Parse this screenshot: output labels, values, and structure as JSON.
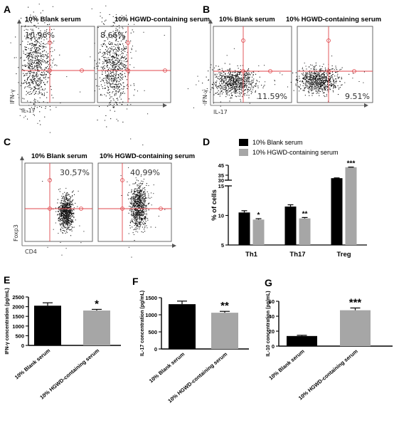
{
  "panel_labels": [
    "A",
    "B",
    "C",
    "D",
    "E",
    "F",
    "G"
  ],
  "flow": {
    "A": {
      "titles": [
        "10% Blank serum",
        "10% HGWD-containing serum"
      ],
      "percents": [
        "10.96%",
        "8.66%"
      ],
      "y_axis": "IFN-γ",
      "x_axis": "IL-17"
    },
    "B": {
      "titles": [
        "10% Blank serum",
        "10% HGWD-containing serum"
      ],
      "percents": [
        "11.59%",
        "9.51%"
      ],
      "y_axis": "IFN-γ",
      "x_axis": "IL-17"
    },
    "C": {
      "titles": [
        "10% Blank serum",
        "10% HGWD-containing serum"
      ],
      "percents": [
        "30.57%",
        "40.99%"
      ],
      "y_axis": "Foxp3",
      "x_axis": "CD4"
    }
  },
  "colors": {
    "blank": "#000000",
    "hgwd": "#a6a6a6",
    "gate": "#e0474c",
    "dots": "#111111"
  },
  "chart_data": [
    {
      "panel": "D",
      "type": "bar",
      "categories": [
        "Th1",
        "Th17",
        "Treg"
      ],
      "series": [
        {
          "name": "10% Blank serum",
          "values": [
            10.5,
            11.5,
            32
          ],
          "errors": [
            0.3,
            0.3,
            0.2
          ]
        },
        {
          "name": "10% HGWD-containing serum",
          "values": [
            9.3,
            9.5,
            43
          ],
          "errors": [
            0.2,
            0.15,
            0.3
          ]
        }
      ],
      "significance": [
        "*",
        "**",
        "***"
      ],
      "ylabel": "% of cells",
      "yticks_lower": [
        "5",
        "10",
        "15"
      ],
      "yticks_upper": [
        "30",
        "35",
        "45"
      ],
      "ylim_lower": [
        5,
        15
      ],
      "ylim_upper": [
        30,
        45
      ],
      "axis_break": [
        15,
        30
      ],
      "legend_position": "top"
    },
    {
      "panel": "E",
      "type": "bar",
      "categories": [
        "10% Blank serum",
        "10% HGWD-containing serum"
      ],
      "values": [
        2050,
        1800
      ],
      "errors": [
        150,
        60
      ],
      "significance": "*",
      "ylabel": "IFN-γ concentration (pg/mL)",
      "yticks": [
        "0",
        "500",
        "1000",
        "1500",
        "2000",
        "2500"
      ],
      "ylim": [
        0,
        2500
      ]
    },
    {
      "panel": "F",
      "type": "bar",
      "categories": [
        "10% Blank serum",
        "10% HGWD-containing serum"
      ],
      "values": [
        1310,
        1060
      ],
      "errors": [
        90,
        40
      ],
      "significance": "**",
      "ylabel": "IL-17 concentration (pg/mL)",
      "yticks": [
        "0",
        "500",
        "1000",
        "1500"
      ],
      "ylim": [
        0,
        1500
      ]
    },
    {
      "panel": "G",
      "type": "bar",
      "categories": [
        "10% Blank serum",
        "10% HGWD-containing serum"
      ],
      "values": [
        13.5,
        48
      ],
      "errors": [
        1.0,
        3.0
      ],
      "significance": "***",
      "ylabel": "IL-10 concentration (pg/mL)",
      "yticks": [
        "0",
        "20",
        "40",
        "60"
      ],
      "ylim": [
        0,
        60
      ]
    }
  ]
}
